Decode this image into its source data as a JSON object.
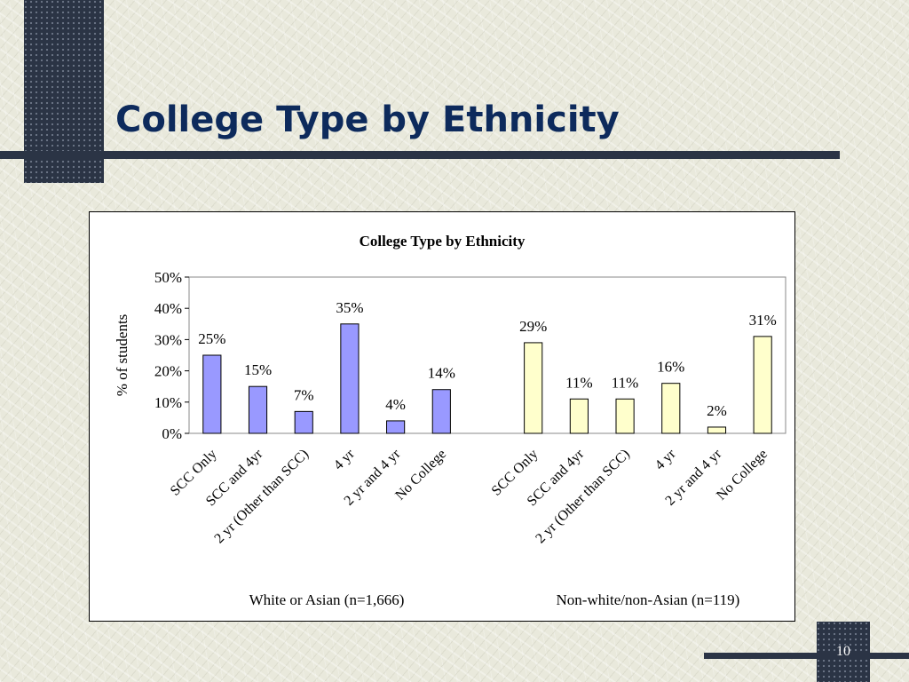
{
  "slide": {
    "title": "College Type by Ethnicity",
    "page_number": "10"
  },
  "chart_data": {
    "type": "bar",
    "title": "College Type by Ethnicity",
    "ylabel": "% of students",
    "xlabel": "",
    "ylim": [
      0,
      50
    ],
    "yticks": [
      "0%",
      "10%",
      "20%",
      "30%",
      "40%",
      "50%"
    ],
    "grid": false,
    "legend": "none",
    "groups": [
      {
        "label": "White or Asian (n=1,666)",
        "color": "#9999ff",
        "categories": [
          "SCC Only",
          "SCC and 4yr",
          "2 yr (Other than SCC)",
          "4 yr",
          "2 yr and 4 yr",
          "No College"
        ],
        "values": [
          25,
          15,
          7,
          35,
          4,
          14
        ],
        "value_labels": [
          "25%",
          "15%",
          "7%",
          "35%",
          "4%",
          "14%"
        ]
      },
      {
        "label": "Non-white/non-Asian (n=119)",
        "color": "#ffffcc",
        "categories": [
          "SCC Only",
          "SCC and 4yr",
          "2 yr (Other than SCC)",
          "4 yr",
          "2 yr and 4 yr",
          "No College"
        ],
        "values": [
          29,
          11,
          11,
          16,
          2,
          31
        ],
        "value_labels": [
          "29%",
          "11%",
          "11%",
          "16%",
          "2%",
          "31%"
        ]
      }
    ]
  }
}
